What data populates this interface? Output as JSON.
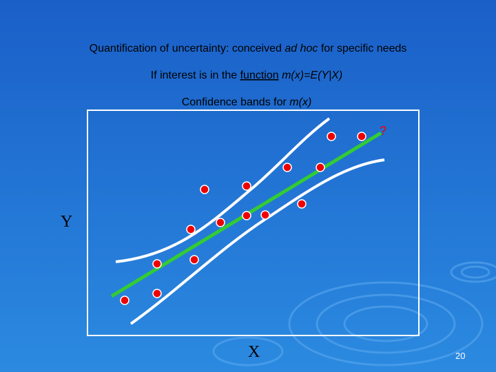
{
  "title": {
    "before": "Quantification of uncertainty: conceived",
    "italic": "ad hoc",
    "after": "for specific needs"
  },
  "subtitle": {
    "before": "If interest is in the",
    "underlined": "function",
    "formula": "m(x)=E(Y|X)"
  },
  "caption": {
    "before": "Confidence bands for",
    "formula": "m(x)"
  },
  "plot": {
    "question": "?",
    "y_label": "Y",
    "x_label": "X"
  },
  "page_number": "20"
}
